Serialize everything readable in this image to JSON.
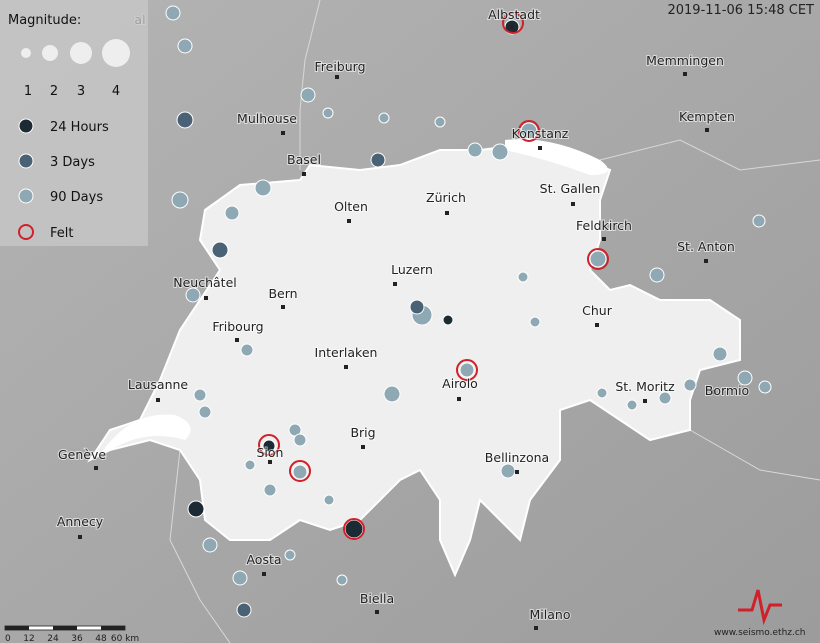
{
  "timestamp": "2019-11-06 15:48 CET",
  "legend": {
    "title": "Magnitude:",
    "sizes": [
      "1",
      "2",
      "3",
      "4"
    ],
    "items": [
      "24 Hours",
      "3 Days",
      "90 Days",
      "Felt"
    ]
  },
  "cities": [
    "al",
    "Albstadt",
    "Freiburg",
    "Memmingen",
    "Mulhouse",
    "Kempten",
    "Konstanz",
    "Basel",
    "St. Gallen",
    "Zürich",
    "Olten",
    "Feldkirch",
    "St. Anton",
    "Luzern",
    "Neuchâtel",
    "Bern",
    "Chur",
    "Fribourg",
    "Interlaken",
    "Lausanne",
    "Airolo",
    "St. Moritz",
    "Bormio",
    "Brig",
    "Genève",
    "Sion",
    "Bellinzona",
    "Annecy",
    "Aosta",
    "Biella",
    "Milano"
  ],
  "scale": [
    "0",
    "12",
    "24",
    "36",
    "48",
    "60 km"
  ],
  "credit": "www.seismo.ethz.ch"
}
